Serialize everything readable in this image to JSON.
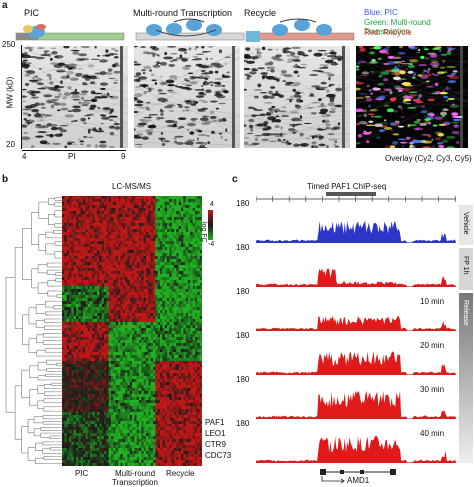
{
  "panel_a": {
    "label": "a",
    "conditions": [
      "PIC",
      "Multi-round Transcription",
      "Recycle"
    ],
    "legend": {
      "blue": {
        "text": "Blue: PIC",
        "color": "#3a57e6"
      },
      "green": {
        "text": "Green: Multi-round Transcription",
        "color": "#22a33a"
      },
      "red": {
        "text": "Red: Recycle",
        "color": "#d23030"
      }
    },
    "y_axis_label": "MW (kD)",
    "y_top": "250",
    "y_bottom": "20",
    "x_left": "4",
    "x_mid": "PI",
    "x_right": "9",
    "overlay_label": "Overlay (Cy2, Cy3, Cy5)"
  },
  "panel_b": {
    "label": "b",
    "title": "LC-MS/MS",
    "colorbar_label": "log FC",
    "colorbar_max": "4",
    "colorbar_min": "-4",
    "columns": [
      "PIC",
      "Multi-round",
      "Transcription",
      "Recycle"
    ],
    "genes": [
      "PAF1",
      "LEO1",
      "CTR9",
      "CDC73"
    ],
    "colors": {
      "up": "#c01818",
      "down": "#21b021",
      "mid": "#1a1a1a"
    }
  },
  "panel_c": {
    "label": "c",
    "title": "Timed PAF1 ChIP-seq",
    "y_max": "180",
    "side_labels": [
      "Vehicle",
      "FP 1h",
      "Release"
    ],
    "time_labels": [
      "10 min",
      "20 min",
      "30 min",
      "40 min"
    ],
    "gene": "AMD1",
    "colors": {
      "vehicle": "#2d35c9",
      "treated": "#e01a1a"
    }
  }
}
